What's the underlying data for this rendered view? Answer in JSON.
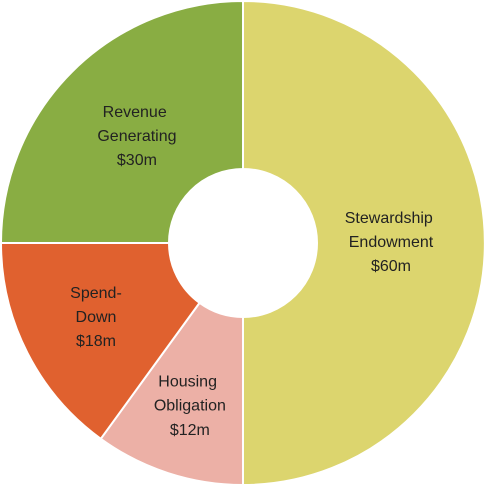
{
  "chart_data": {
    "type": "donut",
    "categories": [
      "Stewardship Endowment",
      "Housing Obligation",
      "Spend-Down",
      "Revenue Generating"
    ],
    "values": [
      60,
      12,
      18,
      30
    ],
    "value_labels": [
      "$60m",
      "$12m",
      "$18m",
      "$30m"
    ],
    "colors": [
      "#dcd56e",
      "#ecb0a6",
      "#e0612f",
      "#89ad43"
    ]
  }
}
